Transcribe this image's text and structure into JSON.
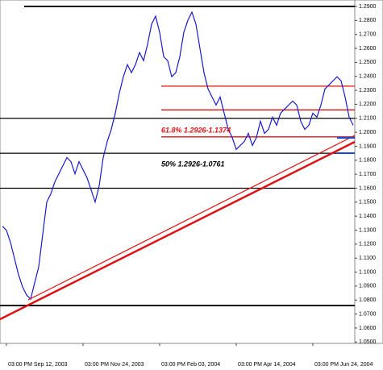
{
  "chart_data": {
    "type": "line",
    "annotations": [
      "61.8% 1.2926-1.1374",
      "50% 1.2926-1.0761"
    ],
    "categories": [
      null,
      "03:00 PM Sep 12, 2003",
      null,
      null,
      null,
      null,
      null,
      null,
      null,
      null,
      null,
      null,
      null,
      null,
      null,
      null,
      null,
      null,
      null,
      null,
      "03:00 PM Nov 24, 2003",
      null,
      null,
      null,
      null,
      null,
      null,
      null,
      null,
      null,
      null,
      null,
      null,
      null,
      null,
      null,
      null,
      null,
      null,
      "03:00 PM Feb 03, 2004",
      null,
      null,
      null,
      null,
      null,
      null,
      null,
      null,
      null,
      null,
      null,
      null,
      null,
      null,
      null,
      null,
      null,
      null,
      "03:00 PM Apr 14, 2004",
      null,
      null,
      null,
      null,
      null,
      null,
      null,
      null,
      null,
      null,
      null,
      null,
      null,
      null,
      null,
      null,
      null,
      null,
      "03:00 PM Jun 24, 2004",
      null,
      null,
      null,
      null,
      null,
      null,
      null,
      null,
      null,
      null
    ],
    "series": [
      {
        "color": "#1a1acc",
        "values": [
          1.1328,
          1.1299,
          1.1212,
          1.1096,
          1.0981,
          1.0894,
          1.0836,
          1.0807,
          1.0923,
          1.1038,
          1.127,
          1.1501,
          1.1559,
          1.1645,
          1.1703,
          1.1761,
          1.1819,
          1.179,
          1.1703,
          1.179,
          1.1732,
          1.1674,
          1.1588,
          1.1501,
          1.1617,
          1.1819,
          1.1934,
          1.2021,
          1.2137,
          1.2281,
          1.2397,
          1.2484,
          1.2426,
          1.2484,
          1.257,
          1.2512,
          1.2628,
          1.2773,
          1.283,
          1.2715,
          1.2541,
          1.2512,
          1.2397,
          1.2426,
          1.2541,
          1.2715,
          1.2801,
          1.2859,
          1.2773,
          1.2599,
          1.2426,
          1.231,
          1.2252,
          1.2195,
          1.2252,
          1.2137,
          1.2021,
          1.1963,
          1.1877,
          1.1906,
          1.1934,
          1.1992,
          1.1906,
          1.1963,
          1.2079,
          1.1992,
          1.2021,
          1.2108,
          1.205,
          1.2137,
          1.2166,
          1.2195,
          1.2223,
          1.2195,
          1.2079,
          1.2021,
          1.205,
          1.2137,
          1.2108,
          1.2195,
          1.231,
          1.2339,
          1.2368,
          1.2397,
          1.2368,
          1.2252,
          1.2108,
          1.205
        ]
      }
    ],
    "levels": [
      {
        "value": 1.29,
        "color": "#000000"
      },
      {
        "value": 1.21,
        "color": "#000000"
      },
      {
        "value": 1.185,
        "color": "#000000"
      },
      {
        "value": 1.16,
        "color": "#000000"
      },
      {
        "value": 1.0761,
        "color": "#000000"
      },
      {
        "value": 1.233,
        "color": "#e01010"
      },
      {
        "value": 1.216,
        "color": "#e01010"
      },
      {
        "value": 1.1967,
        "color": "#e01010"
      }
    ],
    "ylim": [
      1.049,
      1.2946
    ],
    "yticks": [
      {
        "value": 1.05,
        "label": "1.0500"
      },
      {
        "value": 1.06,
        "label": "1.0600"
      },
      {
        "value": 1.07,
        "label": "1.0700"
      },
      {
        "value": 1.08,
        "label": "1.0800"
      },
      {
        "value": 1.09,
        "label": "1.0900"
      },
      {
        "value": 1.1,
        "label": "1.1000"
      },
      {
        "value": 1.11,
        "label": "1.1100"
      },
      {
        "value": 1.12,
        "label": "1.1200"
      },
      {
        "value": 1.13,
        "label": "1.1300"
      },
      {
        "value": 1.14,
        "label": "1.1400"
      },
      {
        "value": 1.15,
        "label": "1.1500"
      },
      {
        "value": 1.16,
        "label": "1.1600"
      },
      {
        "value": 1.17,
        "label": "1.1700"
      },
      {
        "value": 1.18,
        "label": "1.1800"
      },
      {
        "value": 1.19,
        "label": "1.1900"
      },
      {
        "value": 1.2,
        "label": "1.2000"
      },
      {
        "value": 1.21,
        "label": "1.2100"
      },
      {
        "value": 1.22,
        "label": "1.2200"
      },
      {
        "value": 1.23,
        "label": "1.2300"
      },
      {
        "value": 1.24,
        "label": "1.2400"
      },
      {
        "value": 1.25,
        "label": "1.2500"
      },
      {
        "value": 1.26,
        "label": "1.2600"
      },
      {
        "value": 1.27,
        "label": "1.2700"
      },
      {
        "value": 1.28,
        "label": "1.2800"
      },
      {
        "value": 1.29,
        "label": "1.2900"
      }
    ]
  }
}
